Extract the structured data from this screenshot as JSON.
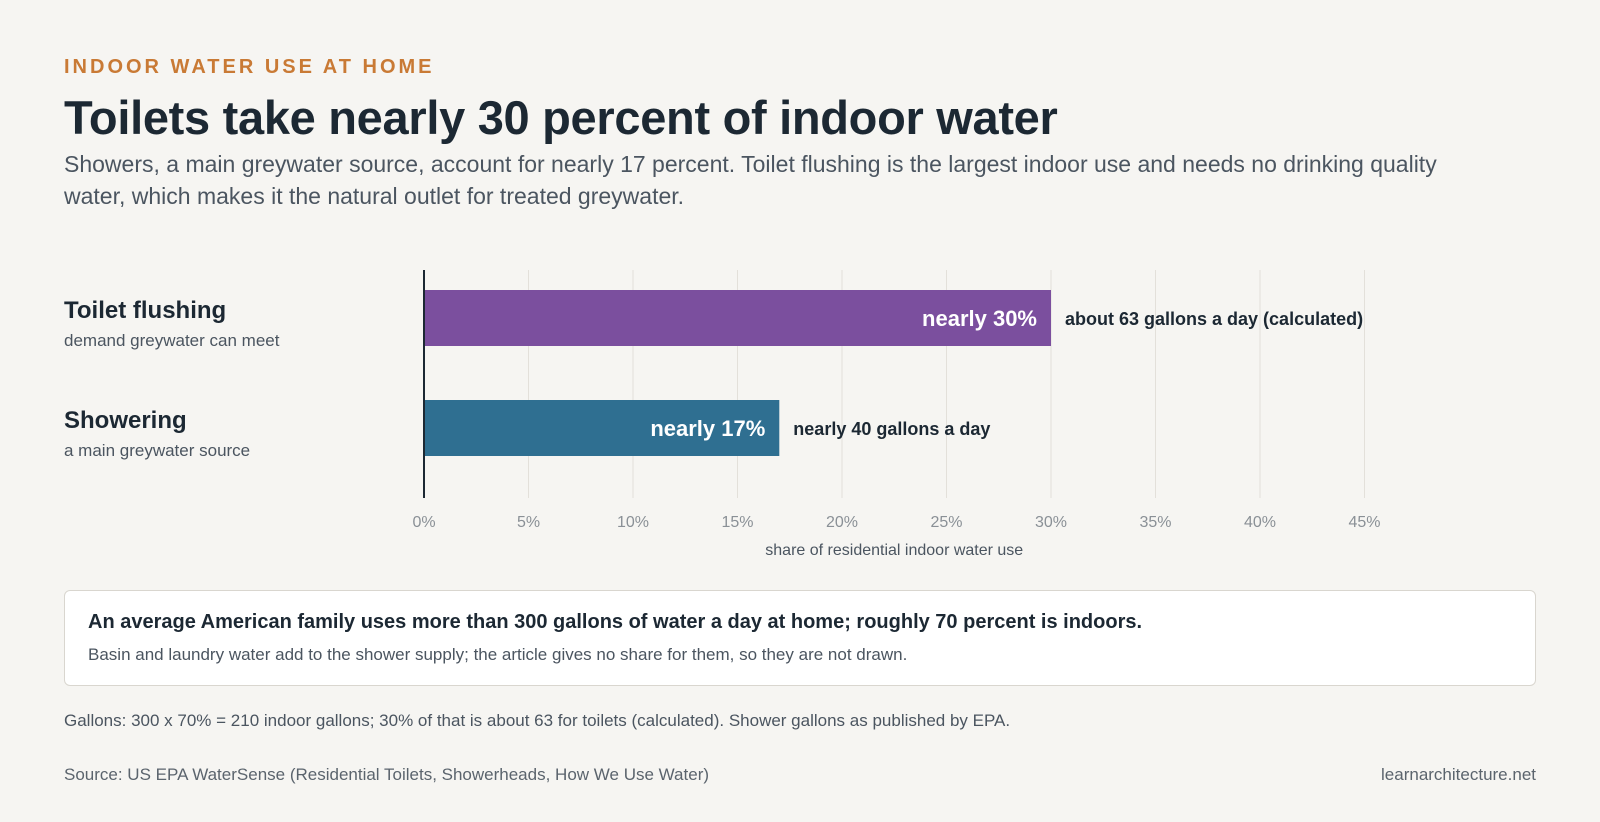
{
  "header": {
    "eyebrow": "INDOOR WATER USE AT HOME",
    "title": "Toilets take nearly 30 percent of indoor water",
    "subtitle": "Showers, a main greywater source, account for nearly 17 percent. Toilet flushing is the largest indoor use and needs no drinking quality water, which makes it the natural outlet for treated greywater."
  },
  "chart_data": {
    "type": "bar",
    "orientation": "horizontal",
    "categories": [
      "Toilet flushing",
      "Showering"
    ],
    "category_subtitles": [
      "demand greywater can meet",
      "a main greywater source"
    ],
    "values": [
      30,
      17
    ],
    "bar_labels": [
      "nearly 30%",
      "nearly 17%"
    ],
    "annotations": [
      "about 63 gallons a day (calculated)",
      "nearly 40 gallons a day"
    ],
    "colors": [
      "#7b4f9e",
      "#2f6f91"
    ],
    "xlabel": "share of residential indoor water use",
    "xlim": [
      0,
      45
    ],
    "ticks": [
      0,
      5,
      10,
      15,
      20,
      25,
      30,
      35,
      40,
      45
    ],
    "tick_labels": [
      "0%",
      "5%",
      "10%",
      "15%",
      "20%",
      "25%",
      "30%",
      "35%",
      "40%",
      "45%"
    ],
    "grid": true
  },
  "note": {
    "main": "An average American family uses more than 300 gallons of water a day at home; roughly 70 percent is indoors.",
    "sub": "Basin and laundry water add to the shower supply; the article gives no share for them, so they are not drawn."
  },
  "footer": {
    "calc_note": "Gallons: 300 x 70% = 210 indoor gallons; 30% of that is about 63 for toilets (calculated). Shower gallons as published by EPA.",
    "source": "Source: US EPA WaterSense (Residential Toilets, Showerheads, How We Use Water)",
    "credit": "learnarchitecture.net"
  }
}
